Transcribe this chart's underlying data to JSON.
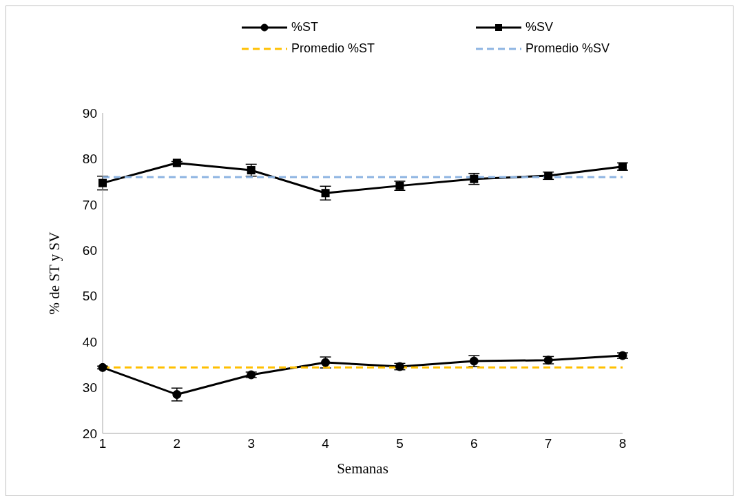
{
  "chart_data": {
    "type": "line",
    "xlabel": "Semanas",
    "ylabel": "% de ST y SV",
    "categories": [
      "1",
      "2",
      "3",
      "4",
      "5",
      "6",
      "7",
      "8"
    ],
    "ylim": [
      20,
      90
    ],
    "yticks": [
      20,
      30,
      40,
      50,
      60,
      70,
      80,
      90
    ],
    "grid": false,
    "legend": "top",
    "series": [
      {
        "name": "%ST",
        "color": "#000000",
        "marker": "circle",
        "line_style": "solid",
        "values": [
          34.4,
          28.5,
          32.8,
          35.5,
          34.6,
          35.8,
          36.0,
          37.0
        ],
        "errors": [
          0.3,
          1.4,
          0.6,
          1.2,
          0.7,
          1.2,
          0.8,
          0.6
        ]
      },
      {
        "name": "%SV",
        "color": "#000000",
        "marker": "square",
        "line_style": "solid",
        "values": [
          74.7,
          79.1,
          77.5,
          72.5,
          74.1,
          75.6,
          76.3,
          78.3
        ],
        "errors": [
          1.5,
          0.3,
          1.3,
          1.5,
          1.0,
          1.2,
          0.8,
          0.8
        ]
      },
      {
        "name": "Promedio %ST",
        "color": "#ffc000",
        "marker": "none",
        "line_style": "dashed",
        "values": [
          34.4,
          34.4,
          34.4,
          34.4,
          34.4,
          34.4,
          34.4,
          34.4
        ]
      },
      {
        "name": "Promedio %SV",
        "color": "#8db4e2",
        "marker": "none",
        "line_style": "dashed",
        "values": [
          76.0,
          76.0,
          76.0,
          76.0,
          76.0,
          76.0,
          76.0,
          76.0
        ]
      }
    ]
  }
}
